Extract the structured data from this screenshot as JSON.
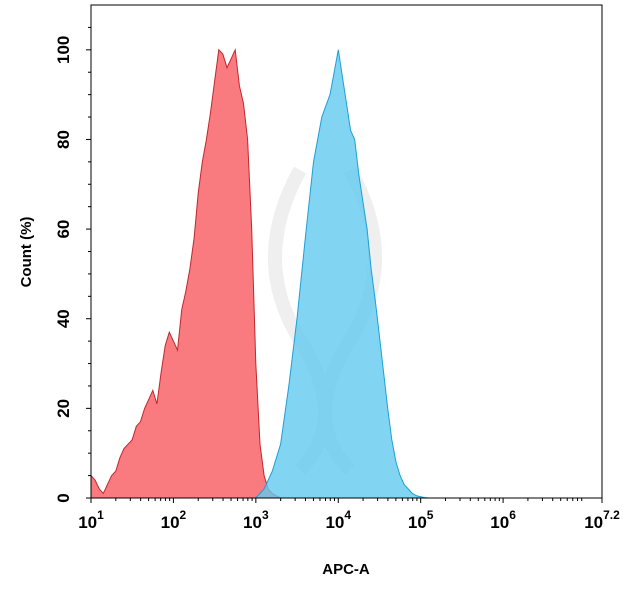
{
  "chart_data": {
    "type": "area",
    "xlabel": "APC-A",
    "ylabel": "Count  (%)",
    "x_scale": "log",
    "xlim": [
      10,
      15848931.92
    ],
    "ylim": [
      0,
      110
    ],
    "x_tick_labels": [
      {
        "base": "10",
        "exp": "1"
      },
      {
        "base": "10",
        "exp": "2"
      },
      {
        "base": "10",
        "exp": "3"
      },
      {
        "base": "10",
        "exp": "4"
      },
      {
        "base": "10",
        "exp": "5"
      },
      {
        "base": "10",
        "exp": "6"
      },
      {
        "base": "10",
        "exp": "7.2"
      }
    ],
    "x_ticks": [
      10,
      100,
      1000,
      10000,
      100000,
      1000000,
      15848931.92
    ],
    "y_ticks": [
      0,
      20,
      40,
      60,
      80,
      100
    ],
    "y_tick_labels": [
      "0",
      "20",
      "40",
      "60",
      "80",
      "100"
    ],
    "grid": false,
    "legend": "none",
    "series": [
      {
        "color": "#f8595f",
        "stroke": "#c0272d",
        "x": [
          10,
          11.2,
          12.6,
          14.1,
          15.8,
          17.8,
          20,
          22.4,
          25.1,
          28.2,
          31.6,
          35.5,
          39.8,
          44.7,
          50.1,
          56.2,
          63.1,
          70.8,
          79.4,
          89.1,
          100,
          112,
          126,
          141,
          158,
          178,
          200,
          224,
          251,
          282,
          316,
          355,
          398,
          447,
          501,
          562,
          631,
          708,
          794,
          891,
          1000,
          1122,
          1259,
          1413,
          1585,
          1778,
          2000
        ],
        "y": [
          5,
          4,
          2,
          1,
          3,
          5,
          6,
          9,
          11,
          12,
          13,
          16,
          17,
          20,
          22,
          24,
          21,
          28,
          34,
          37,
          35,
          33,
          42,
          46,
          51,
          58,
          68,
          75,
          80,
          86,
          93,
          100,
          99,
          96,
          98,
          100,
          92,
          88,
          80,
          60,
          30,
          12,
          5,
          2,
          1,
          0.5,
          0
        ]
      },
      {
        "color": "#63c9f0",
        "stroke": "#1d9fd6",
        "x": [
          1000,
          1259,
          1585,
          1995,
          2512,
          3162,
          3981,
          5012,
          6310,
          7943,
          10000,
          11220,
          12589,
          14125,
          15849,
          17783,
          19953,
          22387,
          25119,
          28184,
          31623,
          35481,
          39811,
          44668,
          50119,
          56234,
          63096,
          70795,
          79433,
          89125,
          100000,
          112202,
          125893
        ],
        "y": [
          0,
          2,
          6,
          12,
          25,
          40,
          58,
          75,
          85,
          90,
          100,
          94,
          88,
          82,
          80,
          72,
          66,
          60,
          51,
          44,
          36,
          28,
          20,
          13,
          8,
          5,
          3,
          2,
          1,
          0.5,
          0.3,
          0.1,
          0
        ]
      }
    ]
  }
}
